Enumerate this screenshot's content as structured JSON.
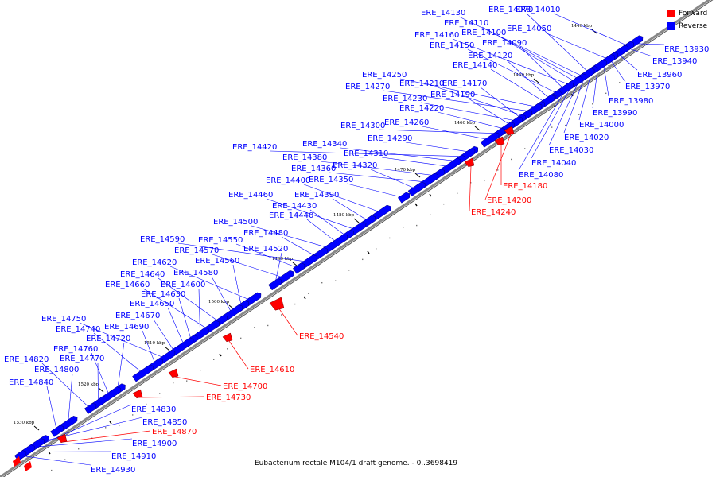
{
  "caption": "Eubacterium rectale M104/1 draft genome. - 0..3698419",
  "legend": [
    {
      "label": "Forward",
      "color": "#ff0000"
    },
    {
      "label": "Reverse",
      "color": "#0000ff"
    }
  ],
  "colors": {
    "forward": "#ff0000",
    "reverse": "#0000ff",
    "backbone": "#888888"
  },
  "scale": {
    "ticks": [
      "1440 kbp",
      "1450 kbp",
      "1460 kbp",
      "1470 kbp",
      "1480 kbp",
      "1490 kbp",
      "1500 kbp",
      "1510 kbp",
      "1520 kbp",
      "1530 kbp"
    ]
  },
  "reverse_genes": [
    "ERE_14010",
    "ERE_14050",
    "ERE_14070",
    "ERE_14130",
    "ERE_14110",
    "ERE_14100",
    "ERE_14160",
    "ERE_14090",
    "ERE_14150",
    "ERE_14120",
    "ERE_14140",
    "ERE_14250",
    "ERE_14270",
    "ERE_14210",
    "ERE_14170",
    "ERE_14230",
    "ERE_14190",
    "ERE_14220",
    "ERE_14300",
    "ERE_14260",
    "ERE_14290",
    "ERE_14420",
    "ERE_14340",
    "ERE_14310",
    "ERE_14380",
    "ERE_14360",
    "ERE_14320",
    "ERE_14350",
    "ERE_14400",
    "ERE_14390",
    "ERE_14460",
    "ERE_14430",
    "ERE_14440",
    "ERE_14500",
    "ERE_14480",
    "ERE_14590",
    "ERE_14550",
    "ERE_14570",
    "ERE_14520",
    "ERE_14620",
    "ERE_14560",
    "ERE_14580",
    "ERE_14640",
    "ERE_14660",
    "ERE_14600",
    "ERE_14630",
    "ERE_14650",
    "ERE_14670",
    "ERE_14750",
    "ERE_14690",
    "ERE_14740",
    "ERE_14720",
    "ERE_14760",
    "ERE_14770",
    "ERE_14820",
    "ERE_14800",
    "ERE_14840",
    "ERE_13930",
    "ERE_13940",
    "ERE_13960",
    "ERE_13970",
    "ERE_13980",
    "ERE_13990",
    "ERE_14000",
    "ERE_14020",
    "ERE_14030",
    "ERE_14040",
    "ERE_14080",
    "ERE_14830",
    "ERE_14850",
    "ERE_14900",
    "ERE_14910",
    "ERE_14930"
  ],
  "forward_genes": [
    "ERE_14180",
    "ERE_14200",
    "ERE_14240",
    "ERE_14540",
    "ERE_14610",
    "ERE_14700",
    "ERE_14730",
    "ERE_14870"
  ]
}
